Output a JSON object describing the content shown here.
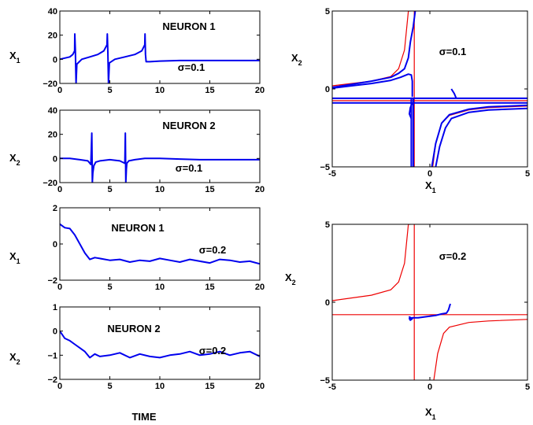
{
  "colors": {
    "trace": "#0000ee",
    "nullcline": "#ee0000",
    "axes": "#000000"
  },
  "figure": {
    "bottom_xlabel": "TIME"
  },
  "chart_data": [
    {
      "id": "ts1",
      "type": "line",
      "title": "NEURON 1",
      "annotation": "σ=0.1",
      "ylabel": {
        "main": "X",
        "sub": "1"
      },
      "xlabel": "",
      "xlim": [
        0,
        20
      ],
      "ylim": [
        -20,
        40
      ],
      "xticks": [
        0,
        5,
        10,
        15,
        20
      ],
      "yticks": [
        -20,
        0,
        20,
        40
      ],
      "series": [
        {
          "color": "#0000ee",
          "x": [
            0,
            0.5,
            1.0,
            1.3,
            1.48,
            1.5,
            1.55,
            1.62,
            1.7,
            2.2,
            3.0,
            3.8,
            4.4,
            4.72,
            4.75,
            4.8,
            4.87,
            4.95,
            5.5,
            6.5,
            7.5,
            8.2,
            8.5,
            8.52,
            8.57,
            8.63,
            8.7,
            9.0,
            10,
            12,
            14,
            16,
            18,
            20
          ],
          "y": [
            0,
            1,
            2,
            4,
            7,
            21,
            8,
            -20,
            -4,
            0,
            2,
            4,
            7,
            12,
            21,
            6,
            -20,
            -3,
            0,
            2,
            4,
            7,
            12,
            21,
            4,
            -2,
            -2,
            -2,
            -1.5,
            -1,
            -1,
            -1,
            -1,
            -1
          ]
        }
      ]
    },
    {
      "id": "ts2",
      "type": "line",
      "title": "NEURON 2",
      "annotation": "σ=0.1",
      "ylabel": {
        "main": "X",
        "sub": "2"
      },
      "xlabel": "",
      "xlim": [
        0,
        20
      ],
      "ylim": [
        -20,
        40
      ],
      "xticks": [
        0,
        5,
        10,
        15,
        20
      ],
      "yticks": [
        -20,
        0,
        20,
        40
      ],
      "series": [
        {
          "color": "#0000ee",
          "x": [
            0,
            1,
            2,
            2.8,
            3.1,
            3.2,
            3.25,
            3.3,
            3.4,
            3.6,
            4.0,
            5.0,
            6.0,
            6.5,
            6.55,
            6.6,
            6.65,
            6.7,
            6.9,
            7.5,
            8.5,
            10,
            12,
            14,
            16,
            18,
            20
          ],
          "y": [
            0,
            0,
            -1,
            -2,
            -5,
            21,
            -20,
            -12,
            -6,
            -3,
            -2,
            -1,
            -2,
            -4,
            21,
            -20,
            -9,
            -4,
            -2,
            -1,
            0,
            0,
            -0.5,
            -1,
            -1,
            -1,
            -1
          ]
        }
      ]
    },
    {
      "id": "ts3",
      "type": "line",
      "title": "NEURON 1",
      "annotation": "σ=0.2",
      "ylabel": {
        "main": "X",
        "sub": "1"
      },
      "xlabel": "",
      "xlim": [
        0,
        20
      ],
      "ylim": [
        -2,
        2
      ],
      "xticks": [
        0,
        5,
        10,
        15,
        20
      ],
      "yticks": [
        -2,
        0,
        2
      ],
      "series": [
        {
          "color": "#0000ee",
          "x": [
            0,
            0.5,
            1.0,
            1.5,
            2.0,
            2.5,
            3.0,
            3.5,
            4.0,
            5.0,
            6.0,
            7.0,
            8.0,
            9.0,
            10.0,
            11.0,
            12.0,
            13.0,
            14.0,
            15.0,
            16.0,
            17.0,
            18.0,
            19.0,
            20.0
          ],
          "y": [
            1.1,
            0.9,
            0.85,
            0.5,
            0.0,
            -0.5,
            -0.85,
            -0.75,
            -0.8,
            -0.9,
            -0.85,
            -1.0,
            -0.9,
            -0.95,
            -0.8,
            -0.9,
            -1.0,
            -0.85,
            -0.95,
            -1.05,
            -0.85,
            -0.9,
            -1.0,
            -0.95,
            -1.1
          ]
        }
      ]
    },
    {
      "id": "ts4",
      "type": "line",
      "title": "NEURON 2",
      "annotation": "σ=0.2",
      "ylabel": {
        "main": "X",
        "sub": "2"
      },
      "xlabel": "",
      "xlim": [
        0,
        20
      ],
      "ylim": [
        -2,
        1
      ],
      "xticks": [
        0,
        5,
        10,
        15,
        20
      ],
      "yticks": [
        -2,
        -1,
        0,
        1
      ],
      "series": [
        {
          "color": "#0000ee",
          "x": [
            0,
            0.5,
            1.0,
            1.5,
            2.0,
            2.5,
            3.0,
            3.5,
            4.0,
            5.0,
            6.0,
            7.0,
            8.0,
            9.0,
            10.0,
            11.0,
            12.0,
            13.0,
            14.0,
            15.0,
            16.0,
            17.0,
            18.0,
            19.0,
            20.0
          ],
          "y": [
            0,
            -0.3,
            -0.4,
            -0.55,
            -0.7,
            -0.85,
            -1.1,
            -0.95,
            -1.05,
            -1.0,
            -0.9,
            -1.1,
            -0.95,
            -1.05,
            -1.1,
            -1.0,
            -0.95,
            -0.85,
            -1.0,
            -0.95,
            -0.85,
            -1.0,
            -0.9,
            -0.85,
            -1.05
          ]
        }
      ]
    },
    {
      "id": "ph1",
      "type": "line",
      "title": "",
      "annotation": "σ=0.1",
      "ylabel": {
        "main": "X",
        "sub": "2"
      },
      "xlabel": {
        "main": "X",
        "sub": "1"
      },
      "xlim": [
        -5,
        5
      ],
      "ylim": [
        -5,
        5
      ],
      "xticks": [
        -5,
        0,
        5
      ],
      "yticks": [
        -5,
        0,
        5
      ],
      "nullclines": [
        {
          "color": "#ee0000",
          "x": [
            -5,
            -3,
            -2,
            -1.6,
            -1.3,
            -1.1,
            -1.0
          ],
          "y": [
            0.2,
            0.5,
            0.8,
            1.3,
            2.5,
            5,
            5
          ]
        },
        {
          "color": "#ee0000",
          "x": [
            0.15,
            0.3,
            0.6,
            1.0,
            2.0,
            3.0,
            5.0
          ],
          "y": [
            -5,
            -3.5,
            -2.2,
            -1.7,
            -1.35,
            -1.2,
            -1.1
          ]
        },
        {
          "color": "#ee0000",
          "x": [
            -0.8,
            -0.8
          ],
          "y": [
            -5,
            5
          ]
        },
        {
          "color": "#ee0000",
          "x": [
            -5,
            5
          ],
          "y": [
            -0.75,
            -0.75
          ]
        }
      ],
      "trajectories": [
        {
          "color": "#0000ee",
          "x": [
            -0.75,
            -0.85,
            -1.0,
            -1.1,
            -1.3,
            -1.6,
            -2.0,
            -3.0,
            -4.0,
            -5.0
          ],
          "y": [
            5,
            4,
            3,
            2,
            1.3,
            1.0,
            0.75,
            0.5,
            0.3,
            0.1
          ]
        },
        {
          "color": "#0000ee",
          "x": [
            -5.0,
            -4.0,
            -3.0,
            -2.0,
            -1.5,
            -1.1,
            -0.95,
            -0.9,
            -0.9
          ],
          "y": [
            0.05,
            0.2,
            0.35,
            0.55,
            0.75,
            0.95,
            0.9,
            0.5,
            -0.5
          ]
        },
        {
          "color": "#0000ee",
          "x": [
            -0.95,
            -0.95,
            -0.85,
            -0.85
          ],
          "y": [
            -5,
            -0.6,
            -0.6,
            -5
          ]
        },
        {
          "color": "#0000ee",
          "x": [
            -5,
            5
          ],
          "y": [
            -0.6,
            -0.6
          ]
        },
        {
          "color": "#0000ee",
          "x": [
            -5,
            5
          ],
          "y": [
            -0.9,
            -0.9
          ]
        },
        {
          "color": "#0000ee",
          "x": [
            -0.9,
            -1.0,
            -1.05,
            -0.95
          ],
          "y": [
            -0.9,
            -1.2,
            -1.6,
            -1.9
          ]
        },
        {
          "color": "#0000ee",
          "x": [
            5.0,
            3.0,
            2.0,
            1.0,
            0.6,
            0.3,
            0.1
          ],
          "y": [
            -1.05,
            -1.15,
            -1.3,
            -1.65,
            -2.2,
            -3.5,
            -5
          ]
        },
        {
          "color": "#0000ee",
          "x": [
            5.0,
            3.0,
            2.0,
            1.1,
            0.8,
            0.5,
            0.3
          ],
          "y": [
            -1.25,
            -1.35,
            -1.5,
            -1.9,
            -2.5,
            -3.7,
            -5
          ]
        },
        {
          "color": "#0000ee",
          "x": [
            1.1,
            1.25,
            1.35
          ],
          "y": [
            0,
            -0.3,
            -0.6
          ]
        }
      ]
    },
    {
      "id": "ph2",
      "type": "line",
      "title": "",
      "annotation": "σ=0.2",
      "ylabel": {
        "main": "X",
        "sub": "2"
      },
      "xlabel": {
        "main": "X",
        "sub": "1"
      },
      "xlim": [
        -5,
        5
      ],
      "ylim": [
        -5,
        5
      ],
      "xticks": [
        -5,
        0,
        5
      ],
      "yticks": [
        -5,
        0,
        5
      ],
      "nullclines": [
        {
          "color": "#ee0000",
          "x": [
            -5,
            -3,
            -2,
            -1.6,
            -1.3,
            -1.1,
            -1.0
          ],
          "y": [
            0.1,
            0.45,
            0.8,
            1.3,
            2.5,
            5,
            5
          ]
        },
        {
          "color": "#ee0000",
          "x": [
            0.2,
            0.4,
            0.7,
            1.0,
            2.0,
            3.0,
            5.0
          ],
          "y": [
            -5,
            -3.3,
            -2.0,
            -1.6,
            -1.3,
            -1.2,
            -1.1
          ]
        },
        {
          "color": "#ee0000",
          "x": [
            -0.8,
            -0.8
          ],
          "y": [
            -5,
            5
          ]
        },
        {
          "color": "#ee0000",
          "x": [
            -5,
            5
          ],
          "y": [
            -0.8,
            -0.8
          ]
        }
      ],
      "trajectories": [
        {
          "color": "#0000ee",
          "x": [
            1.05,
            1.0,
            0.95,
            0.85,
            0.6,
            0.3,
            0.0,
            -0.3,
            -0.6,
            -0.9,
            -1.05,
            -1.0,
            -0.9,
            -1.05,
            -0.95
          ],
          "y": [
            -0.1,
            -0.3,
            -0.5,
            -0.7,
            -0.75,
            -0.85,
            -0.9,
            -0.95,
            -1.0,
            -1.0,
            -1.05,
            -1.15,
            -1.05,
            -0.95,
            -1.1
          ]
        }
      ]
    }
  ]
}
